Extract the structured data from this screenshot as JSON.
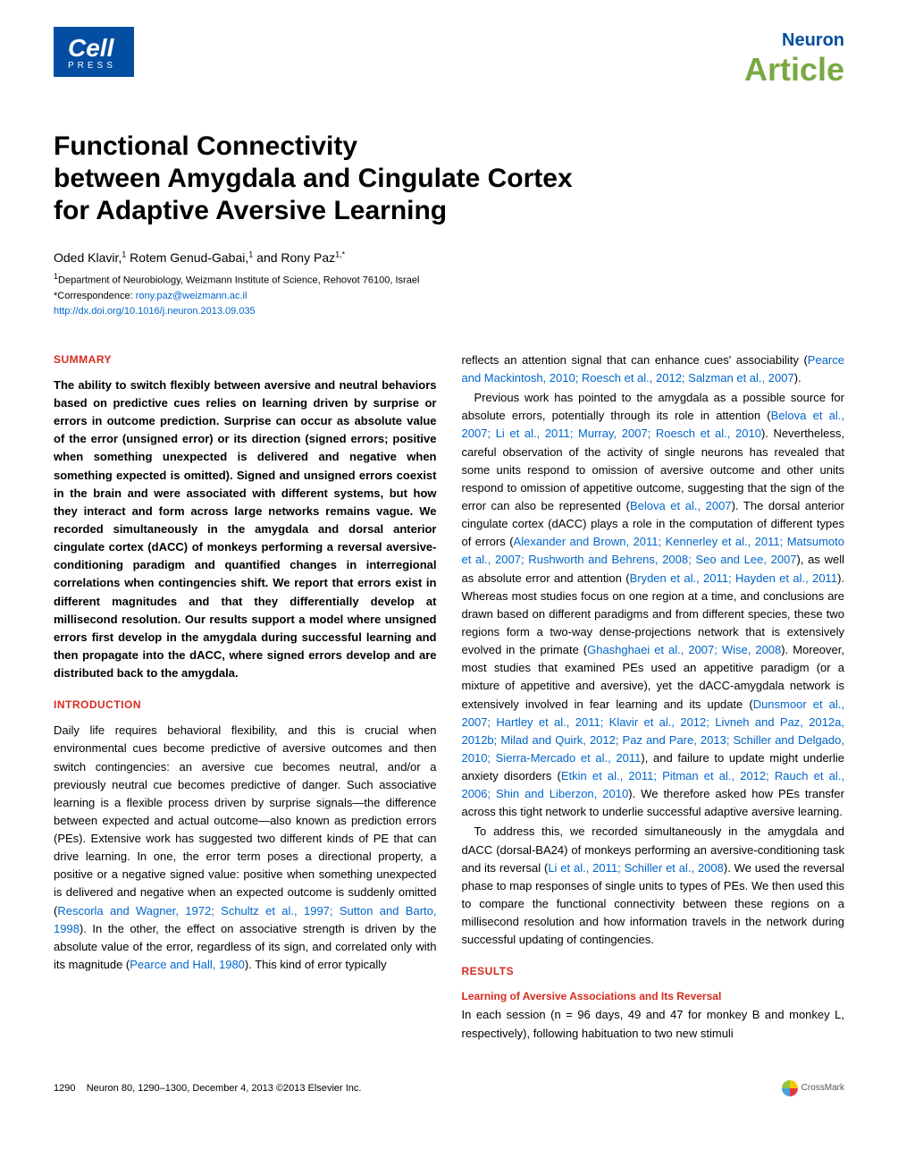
{
  "header": {
    "logo_brand": "Cell",
    "logo_sub": "PRESS",
    "journal": "Neuron",
    "article_type": "Article"
  },
  "title_lines": {
    "l1": "Functional Connectivity",
    "l2": "between Amygdala and Cingulate Cortex",
    "l3": "for Adaptive Aversive Learning"
  },
  "authors": {
    "a1": "Oded Klavir,",
    "a1_sup": "1",
    "a2": " Rotem Genud-Gabai,",
    "a2_sup": "1",
    "a3": " and Rony Paz",
    "a3_sup": "1,*"
  },
  "affiliations": {
    "aff1_sup": "1",
    "aff1": "Department of Neurobiology, Weizmann Institute of Science, Rehovot 76100, Israel",
    "corr": "*Correspondence: ",
    "corr_email": "rony.paz@weizmann.ac.il",
    "doi": "http://dx.doi.org/10.1016/j.neuron.2013.09.035"
  },
  "summary": {
    "head": "SUMMARY",
    "text": "The ability to switch flexibly between aversive and neutral behaviors based on predictive cues relies on learning driven by surprise or errors in outcome prediction. Surprise can occur as absolute value of the error (unsigned error) or its direction (signed errors; positive when something unexpected is delivered and negative when something expected is omitted). Signed and unsigned errors coexist in the brain and were associated with different systems, but how they interact and form across large networks remains vague. We recorded simultaneously in the amygdala and dorsal anterior cingulate cortex (dACC) of monkeys performing a reversal aversive-conditioning paradigm and quantified changes in interregional correlations when contingencies shift. We report that errors exist in different magnitudes and that they differentially develop at millisecond resolution. Our results support a model where unsigned errors first develop in the amygdala during successful learning and then propagate into the dACC, where signed errors develop and are distributed back to the amygdala."
  },
  "intro": {
    "head": "INTRODUCTION",
    "p1a": "Daily life requires behavioral flexibility, and this is crucial when environmental cues become predictive of aversive outcomes and then switch contingencies: an aversive cue becomes neutral, and/or a previously neutral cue becomes predictive of danger. Such associative learning is a flexible process driven by surprise signals—the difference between expected and actual outcome—also known as prediction errors (PEs). Extensive work has suggested two different kinds of PE that can drive learning. In one, the error term poses a directional property, a positive or a negative signed value: positive when something unexpected is delivered and negative when an expected outcome is suddenly omitted (",
    "p1ref1": "Rescorla and Wagner, 1972; Schultz et al., 1997; Sutton and Barto, 1998",
    "p1b": "). In the other, the effect on associative strength is driven by the absolute value of the error, regardless of its sign, and correlated only with its magnitude (",
    "p1ref2": "Pearce and Hall, 1980",
    "p1c": "). This kind of error typically",
    "col2_p1a": "reflects an attention signal that can enhance cues' associability (",
    "col2_p1ref": "Pearce and Mackintosh, 2010; Roesch et al., 2012; Salzman et al., 2007",
    "col2_p1b": ").",
    "p2a": "Previous work has pointed to the amygdala as a possible source for absolute errors, potentially through its role in attention (",
    "p2ref1": "Belova et al., 2007; Li et al., 2011; Murray, 2007; Roesch et al., 2010",
    "p2b": "). Nevertheless, careful observation of the activity of single neurons has revealed that some units respond to omission of aversive outcome and other units respond to omission of appetitive outcome, suggesting that the sign of the error can also be represented (",
    "p2ref2": "Belova et al., 2007",
    "p2c": "). The dorsal anterior cingulate cortex (dACC) plays a role in the computation of different types of errors (",
    "p2ref3": "Alexander and Brown, 2011; Kennerley et al., 2011; Matsumoto et al., 2007; Rushworth and Behrens, 2008; Seo and Lee, 2007",
    "p2d": "), as well as absolute error and attention (",
    "p2ref4": "Bryden et al., 2011; Hayden et al., 2011",
    "p2e": "). Whereas most studies focus on one region at a time, and conclusions are drawn based on different paradigms and from different species, these two regions form a two-way dense-projections network that is extensively evolved in the primate (",
    "p2ref5": "Ghashghaei et al., 2007; Wise, 2008",
    "p2f": "). Moreover, most studies that examined PEs used an appetitive paradigm (or a mixture of appetitive and aversive), yet the dACC-amygdala network is extensively involved in fear learning and its update (",
    "p2ref6": "Dunsmoor et al., 2007; Hartley et al., 2011; Klavir et al., 2012; Livneh and Paz, 2012a, 2012b; Milad and Quirk, 2012; Paz and Pare, 2013; Schiller and Delgado, 2010; Sierra-Mercado et al., 2011",
    "p2g": "), and failure to update might underlie anxiety disorders (",
    "p2ref7": "Etkin et al., 2011; Pitman et al., 2012; Rauch et al., 2006; Shin and Liberzon, 2010",
    "p2h": "). We therefore asked how PEs transfer across this tight network to underlie successful adaptive aversive learning.",
    "p3a": "To address this, we recorded simultaneously in the amygdala and dACC (dorsal-BA24) of monkeys performing an aversive-conditioning task and its reversal (",
    "p3ref1": "Li et al., 2011; Schiller et al., 2008",
    "p3b": "). We used the reversal phase to map responses of single units to types of PEs. We then used this to compare the functional connectivity between these regions on a millisecond resolution and how information travels in the network during successful updating of contingencies."
  },
  "results": {
    "head": "RESULTS",
    "sub1": "Learning of Aversive Associations and Its Reversal",
    "p1": "In each session (n = 96 days, 49 and 47 for monkey B and monkey L, respectively), following habituation to two new stimuli"
  },
  "footer": {
    "page": "1290",
    "citation": "Neuron 80, 1290–1300, December 4, 2013 ©2013 Elsevier Inc.",
    "crossmark": "CrossMark"
  },
  "colors": {
    "brand_blue": "#034ea2",
    "accent_green": "#7aa843",
    "section_red": "#d62b1f",
    "link_blue": "#0066cc"
  }
}
